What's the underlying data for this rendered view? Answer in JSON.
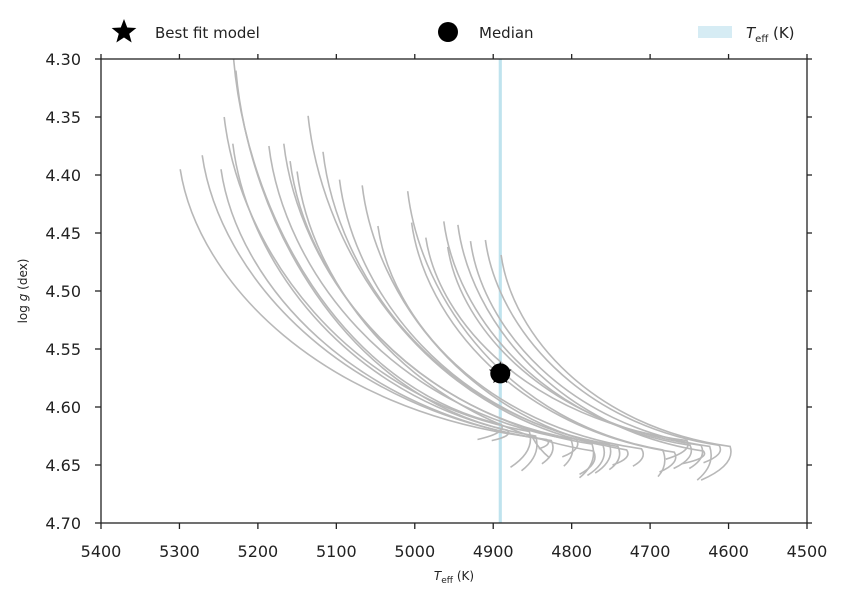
{
  "chart_data": {
    "type": "line",
    "xlabel": {
      "main": "T",
      "sub": "eff",
      "unit": " (K)"
    },
    "ylabel": {
      "pre": "log ",
      "var": "g",
      "post": " (dex)"
    },
    "xlim": [
      5400,
      4500
    ],
    "ylim": [
      4.3,
      4.7
    ],
    "x_reversed": true,
    "y_reversed": true,
    "x_ticks": [
      5400,
      5300,
      5200,
      5100,
      5000,
      4900,
      4800,
      4700,
      4600,
      4500
    ],
    "x_tick_labels": [
      "5400",
      "5300",
      "5200",
      "5100",
      "5000",
      "4900",
      "4800",
      "4700",
      "4600",
      "4500"
    ],
    "y_ticks": [
      4.3,
      4.35,
      4.4,
      4.45,
      4.5,
      4.55,
      4.6,
      4.65,
      4.7
    ],
    "y_tick_labels": [
      "4.30",
      "4.35",
      "4.40",
      "4.45",
      "4.50",
      "4.55",
      "4.60",
      "4.65",
      "4.70"
    ],
    "grid": false,
    "legend_position": "top",
    "legend": [
      {
        "label": "Best fit model",
        "marker": "star"
      },
      {
        "label": "Median",
        "marker": "circle"
      },
      {
        "label_main": "T",
        "label_sub": "eff",
        "label_post": " (K)",
        "marker": "band"
      }
    ],
    "colors": {
      "tracks": "#b8b8b8",
      "band": "#d6ecf4",
      "band_line": "#bfe3ee",
      "markers": "#000000",
      "axes": "#222222"
    },
    "teff_band": [
      4893,
      4889
    ],
    "best_fit": {
      "teff": 4891,
      "logg": 4.571
    },
    "median": {
      "teff": 4891,
      "logg": 4.571
    },
    "tracks": [
      {
        "x0": 5231,
        "y0": 4.3,
        "xt": 4890,
        "yt": 4.615,
        "xe": 4920,
        "ye": 4.628
      },
      {
        "x0": 5228,
        "y0": 4.31,
        "xt": 4882,
        "yt": 4.62,
        "xe": 4902,
        "ye": 4.629
      },
      {
        "x0": 5243,
        "y0": 4.35,
        "xt": 4854,
        "yt": 4.621,
        "xe": 4878,
        "ye": 4.652
      },
      {
        "x0": 5232,
        "y0": 4.373,
        "xt": 4846,
        "yt": 4.625,
        "xe": 4864,
        "ye": 4.655
      },
      {
        "x0": 5299,
        "y0": 4.395,
        "xt": 4850,
        "yt": 4.626,
        "xe": 4828,
        "ye": 4.644
      },
      {
        "x0": 5271,
        "y0": 4.383,
        "xt": 4832,
        "yt": 4.628,
        "xe": 4842,
        "ye": 4.636
      },
      {
        "x0": 5247,
        "y0": 4.395,
        "xt": 4826,
        "yt": 4.629,
        "xe": 4838,
        "ye": 4.649
      },
      {
        "x0": 5186,
        "y0": 4.375,
        "xt": 4801,
        "yt": 4.628,
        "xe": 4810,
        "ye": 4.651
      },
      {
        "x0": 5167,
        "y0": 4.373,
        "xt": 4794,
        "yt": 4.628,
        "xe": 4812,
        "ye": 4.643
      },
      {
        "x0": 5159,
        "y0": 4.388,
        "xt": 4774,
        "yt": 4.632,
        "xe": 4790,
        "ye": 4.661
      },
      {
        "x0": 5150,
        "y0": 4.397,
        "xt": 4772,
        "yt": 4.638,
        "xe": 4790,
        "ye": 4.658
      },
      {
        "x0": 5136,
        "y0": 4.349,
        "xt": 4760,
        "yt": 4.633,
        "xe": 4780,
        "ye": 4.659
      },
      {
        "x0": 5117,
        "y0": 4.38,
        "xt": 4752,
        "yt": 4.632,
        "xe": 4770,
        "ye": 4.657
      },
      {
        "x0": 5096,
        "y0": 4.404,
        "xt": 4741,
        "yt": 4.634,
        "xe": 4752,
        "ye": 4.654
      },
      {
        "x0": 5067,
        "y0": 4.409,
        "xt": 4730,
        "yt": 4.637,
        "xe": 4748,
        "ye": 4.65
      },
      {
        "x0": 5047,
        "y0": 4.444,
        "xt": 4711,
        "yt": 4.636,
        "xe": 4722,
        "ye": 4.651
      },
      {
        "x0": 5009,
        "y0": 4.414,
        "xt": 4684,
        "yt": 4.637,
        "xe": 4690,
        "ye": 4.66
      },
      {
        "x0": 5004,
        "y0": 4.441,
        "xt": 4669,
        "yt": 4.639,
        "xe": 4688,
        "ye": 4.656
      },
      {
        "x0": 4986,
        "y0": 4.454,
        "xt": 4653,
        "yt": 4.629,
        "xe": 4680,
        "ye": 4.645
      },
      {
        "x0": 4963,
        "y0": 4.44,
        "xt": 4649,
        "yt": 4.633,
        "xe": 4670,
        "ye": 4.653
      },
      {
        "x0": 4958,
        "y0": 4.462,
        "xt": 4635,
        "yt": 4.633,
        "xe": 4650,
        "ye": 4.653
      },
      {
        "x0": 4945,
        "y0": 4.443,
        "xt": 4632,
        "yt": 4.638,
        "xe": 4660,
        "ye": 4.649
      },
      {
        "x0": 4929,
        "y0": 4.457,
        "xt": 4624,
        "yt": 4.634,
        "xe": 4640,
        "ye": 4.663
      },
      {
        "x0": 4910,
        "y0": 4.456,
        "xt": 4612,
        "yt": 4.633,
        "xe": 4632,
        "ye": 4.648
      },
      {
        "x0": 4890,
        "y0": 4.469,
        "xt": 4598,
        "yt": 4.634,
        "xe": 4635,
        "ye": 4.663
      }
    ]
  }
}
